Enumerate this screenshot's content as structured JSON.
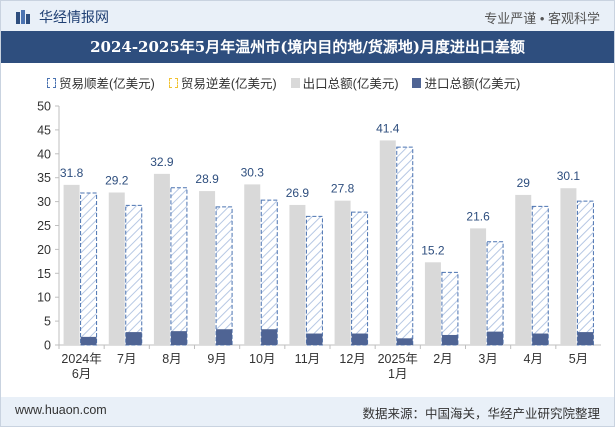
{
  "header": {
    "site_name": "华经情报网",
    "tagline": "专业严谨 • 客观科学"
  },
  "title": "2024-2025年5月年温州市(境内目的地/货源地)月度进出口差额",
  "legend": [
    {
      "label": "贸易顺差(亿美元)",
      "style": "trade-surplus"
    },
    {
      "label": "贸易逆差(亿美元)",
      "style": "trade-deficit"
    },
    {
      "label": "出口总额(亿美元)",
      "style": "export"
    },
    {
      "label": "进口总额(亿美元)",
      "style": "import"
    }
  ],
  "colors": {
    "export": "#d9d9d9",
    "import": "#4f6494",
    "surplus_border": "#4b73b1",
    "deficit_border": "#f1c232",
    "label": "#2e4e7e"
  },
  "chart_data": {
    "type": "bar",
    "categories": [
      "2024年\n6月",
      "7月",
      "8月",
      "9月",
      "10月",
      "11月",
      "12月",
      "2025年\n1月",
      "2月",
      "3月",
      "4月",
      "5月"
    ],
    "series": [
      {
        "name": "贸易顺差(亿美元)",
        "values": [
          31.8,
          29.2,
          32.9,
          28.9,
          30.3,
          26.9,
          27.8,
          41.4,
          15.2,
          21.6,
          29,
          30.1
        ]
      },
      {
        "name": "贸易逆差(亿美元)",
        "values": [
          0,
          0,
          0,
          0,
          0,
          0,
          0,
          0,
          0,
          0,
          0,
          0
        ]
      },
      {
        "name": "出口总额(亿美元)",
        "values": [
          33.5,
          31.9,
          35.8,
          32.2,
          33.6,
          29.3,
          30.2,
          42.8,
          17.3,
          24.4,
          31.4,
          32.8
        ]
      },
      {
        "name": "进口总额(亿美元)",
        "values": [
          1.7,
          2.7,
          2.9,
          3.3,
          3.3,
          2.4,
          2.4,
          1.4,
          2.1,
          2.8,
          2.4,
          2.7
        ]
      }
    ],
    "data_labels": [
      "31.8",
      "29.2",
      "32.9",
      "28.9",
      "30.3",
      "26.9",
      "27.8",
      "41.4",
      "15.2",
      "21.6",
      "29",
      "30.1"
    ],
    "ylim": [
      0,
      50
    ],
    "yticks": [
      0,
      5,
      10,
      15,
      20,
      25,
      30,
      35,
      40,
      45,
      50
    ],
    "xlabel": "",
    "ylabel": "",
    "grid": false,
    "legend_position": "top"
  },
  "footer": {
    "website": "www.huaon.com",
    "source": "数据来源：中国海关，华经产业研究院整理"
  }
}
